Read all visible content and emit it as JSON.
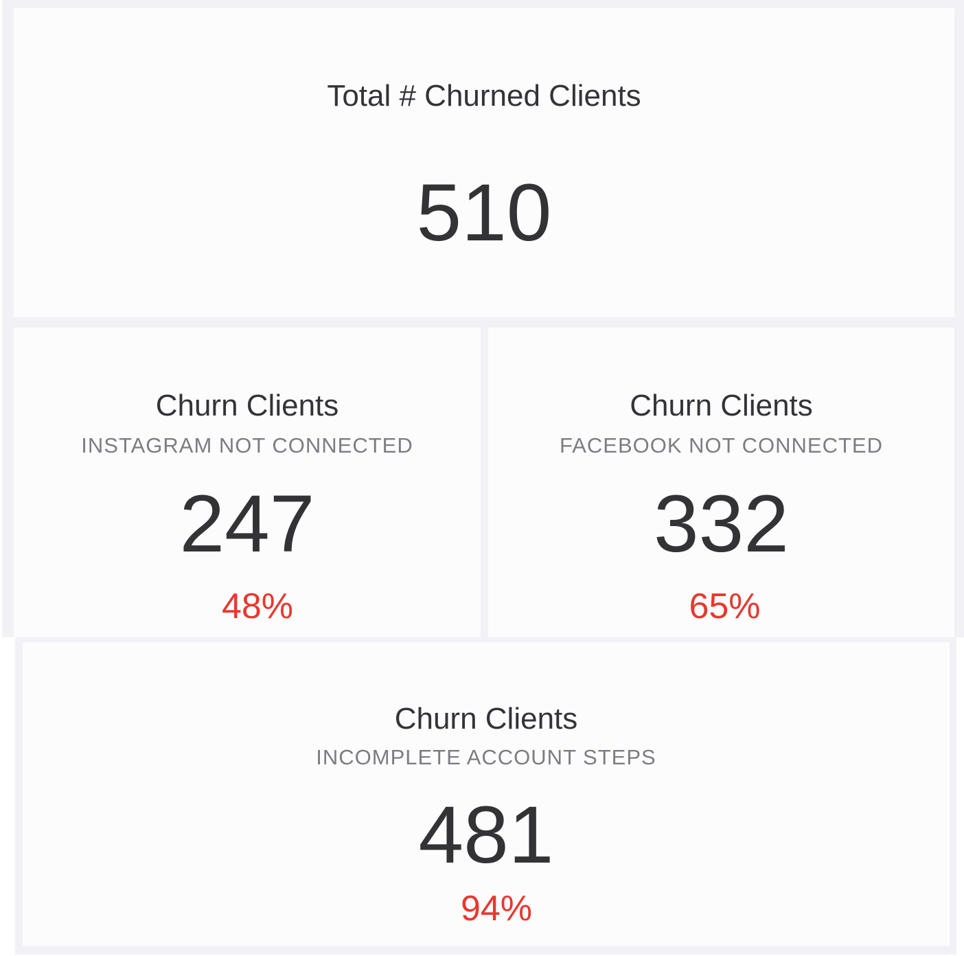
{
  "cards": [
    {
      "title": "Total # Churned Clients",
      "value": "510"
    },
    {
      "title": "Churn Clients",
      "subtitle": "INSTAGRAM NOT CONNECTED",
      "value": "247",
      "percent": "48%"
    },
    {
      "title": "Churn Clients",
      "subtitle": "FACEBOOK NOT CONNECTED",
      "value": "332",
      "percent": "65%"
    },
    {
      "title": "Churn Clients",
      "subtitle": "INCOMPLETE ACCOUNT STEPS",
      "value": "481",
      "percent": "94%"
    }
  ],
  "colors": {
    "background": "#f2f1f6",
    "card": "#fcfcfd",
    "text": "#333336",
    "subtitle": "#7c7c82",
    "percent": "#e8382f"
  }
}
